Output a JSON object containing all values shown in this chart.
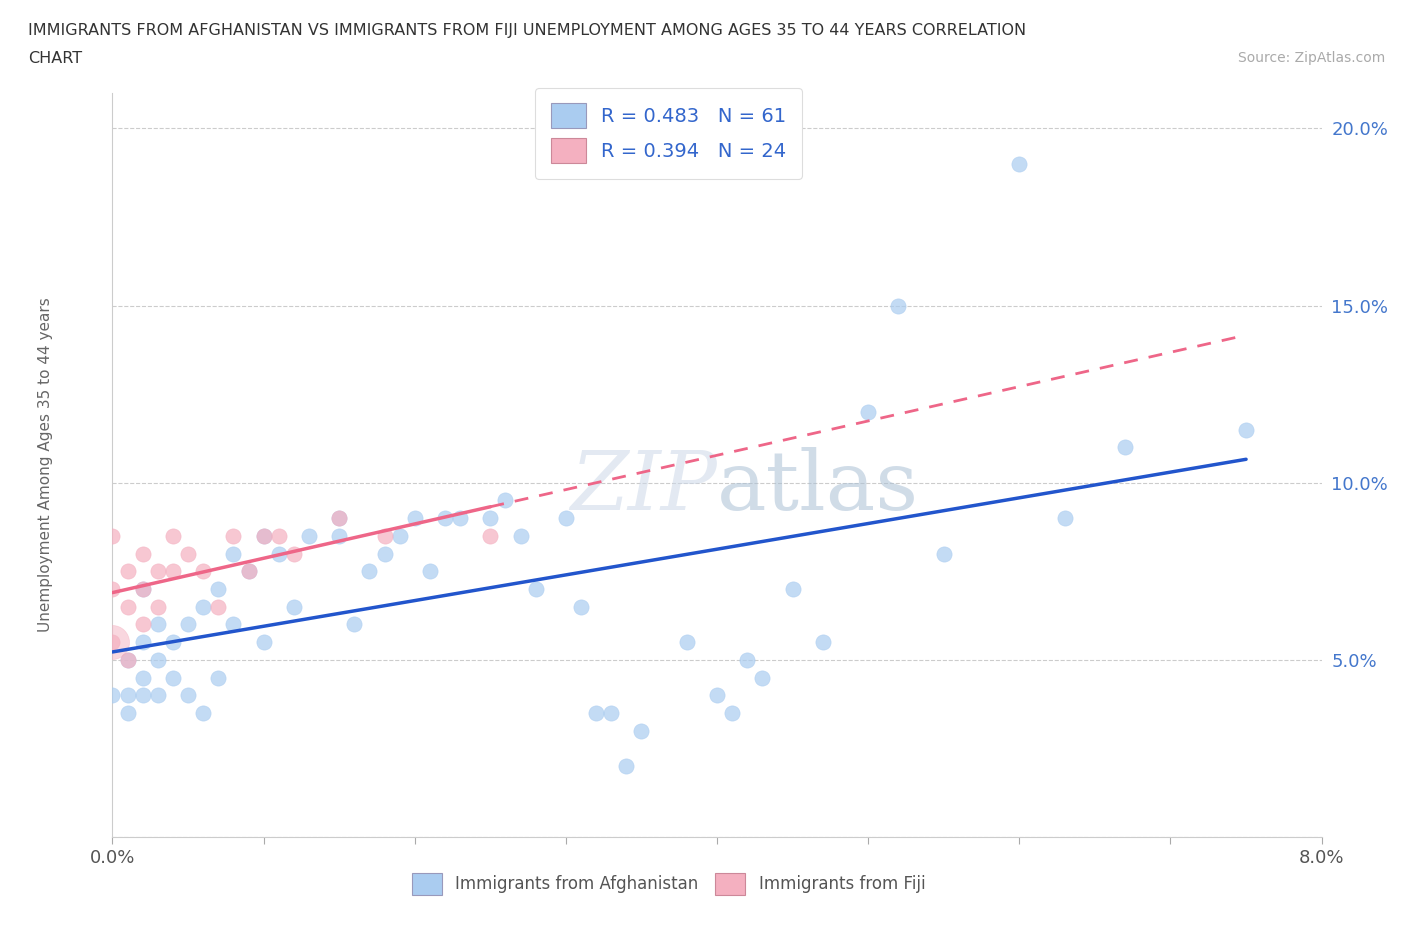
{
  "title_line1": "IMMIGRANTS FROM AFGHANISTAN VS IMMIGRANTS FROM FIJI UNEMPLOYMENT AMONG AGES 35 TO 44 YEARS CORRELATION",
  "title_line2": "CHART",
  "source": "Source: ZipAtlas.com",
  "ylabel": "Unemployment Among Ages 35 to 44 years",
  "xlim": [
    0.0,
    0.08
  ],
  "ylim": [
    0.0,
    0.21
  ],
  "xticks": [
    0.0,
    0.01,
    0.02,
    0.03,
    0.04,
    0.05,
    0.06,
    0.07,
    0.08
  ],
  "yticks": [
    0.0,
    0.05,
    0.1,
    0.15,
    0.2
  ],
  "R_afghanistan": 0.483,
  "N_afghanistan": 61,
  "R_fiji": 0.394,
  "N_fiji": 24,
  "color_afghanistan": "#aaccf0",
  "color_fiji": "#f4b0c0",
  "line_color_afghanistan": "#2255cc",
  "line_color_fiji": "#ee6688",
  "afghanistan_x": [
    0.0,
    0.001,
    0.001,
    0.001,
    0.002,
    0.002,
    0.002,
    0.002,
    0.003,
    0.003,
    0.003,
    0.004,
    0.004,
    0.005,
    0.005,
    0.006,
    0.006,
    0.007,
    0.007,
    0.008,
    0.008,
    0.009,
    0.01,
    0.01,
    0.011,
    0.012,
    0.013,
    0.015,
    0.015,
    0.016,
    0.017,
    0.018,
    0.019,
    0.02,
    0.021,
    0.022,
    0.023,
    0.025,
    0.026,
    0.027,
    0.028,
    0.03,
    0.031,
    0.032,
    0.033,
    0.034,
    0.035,
    0.038,
    0.04,
    0.041,
    0.042,
    0.043,
    0.045,
    0.047,
    0.05,
    0.052,
    0.055,
    0.06,
    0.063,
    0.067,
    0.075
  ],
  "afghanistan_y": [
    0.04,
    0.035,
    0.04,
    0.05,
    0.04,
    0.045,
    0.055,
    0.07,
    0.04,
    0.05,
    0.06,
    0.045,
    0.055,
    0.04,
    0.06,
    0.035,
    0.065,
    0.045,
    0.07,
    0.06,
    0.08,
    0.075,
    0.055,
    0.085,
    0.08,
    0.065,
    0.085,
    0.085,
    0.09,
    0.06,
    0.075,
    0.08,
    0.085,
    0.09,
    0.075,
    0.09,
    0.09,
    0.09,
    0.095,
    0.085,
    0.07,
    0.09,
    0.065,
    0.035,
    0.035,
    0.02,
    0.03,
    0.055,
    0.04,
    0.035,
    0.05,
    0.045,
    0.07,
    0.055,
    0.12,
    0.15,
    0.08,
    0.19,
    0.09,
    0.11,
    0.115
  ],
  "fiji_x": [
    0.0,
    0.0,
    0.0,
    0.001,
    0.001,
    0.001,
    0.002,
    0.002,
    0.002,
    0.003,
    0.003,
    0.004,
    0.004,
    0.005,
    0.006,
    0.007,
    0.008,
    0.009,
    0.01,
    0.011,
    0.012,
    0.015,
    0.018,
    0.025
  ],
  "fiji_y": [
    0.055,
    0.07,
    0.085,
    0.05,
    0.065,
    0.075,
    0.06,
    0.07,
    0.08,
    0.065,
    0.075,
    0.075,
    0.085,
    0.08,
    0.075,
    0.065,
    0.085,
    0.075,
    0.085,
    0.085,
    0.08,
    0.09,
    0.085,
    0.085
  ],
  "legend_label_afg": "R = 0.483   N = 61",
  "legend_label_fiji": "R = 0.394   N = 24",
  "bottom_label_afg": "Immigrants from Afghanistan",
  "bottom_label_fiji": "Immigrants from Fiji"
}
